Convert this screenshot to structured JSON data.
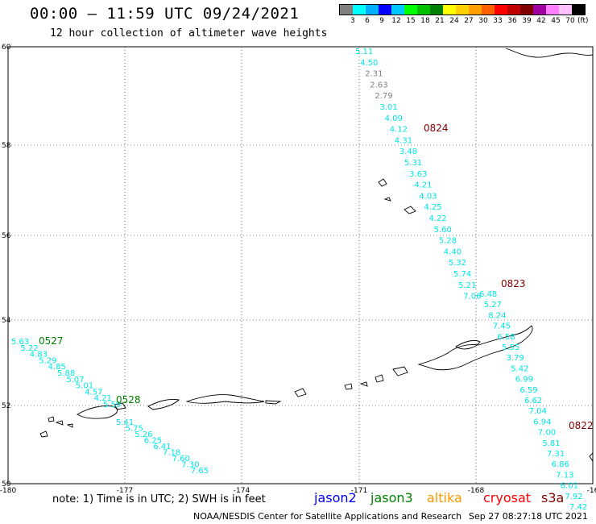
{
  "title": "00:00 – 11:59 UTC 09/24/2021",
  "subtitle": "12 hour collection of altimeter wave heights",
  "colorbar": {
    "unit": "(ft)",
    "colors": [
      "#808080",
      "#00ffff",
      "#00b0ff",
      "#0000ff",
      "#00c8ff",
      "#00ff00",
      "#00c000",
      "#008000",
      "#ffff00",
      "#ffd000",
      "#ffa000",
      "#ff6000",
      "#ff0000",
      "#c00000",
      "#800000",
      "#a000a0",
      "#ff80ff",
      "#ffc0ff",
      "#000000"
    ],
    "ticks": [
      "3",
      "6",
      "9",
      "12",
      "15",
      "18",
      "21",
      "24",
      "27",
      "30",
      "33",
      "36",
      "39",
      "42",
      "45",
      "70"
    ]
  },
  "axes": {
    "lat_labels": [
      "60",
      "58",
      "56",
      "54",
      "52",
      "50"
    ],
    "lon_labels": [
      "-180",
      "-177",
      "-174",
      "-171",
      "-168",
      "-16"
    ]
  },
  "tracks": [
    {
      "name": "track-0824",
      "time": "0824",
      "color": "#800000",
      "values": [
        "5.11",
        "4.50",
        "2.31",
        "2.63",
        "2.79",
        "3.01",
        "4.09",
        "4.12",
        "4.31",
        "3.48",
        "5.31",
        "3.63",
        "4.21",
        "4.03",
        "4.25",
        "4.22",
        "5.60",
        "5.28",
        "4.40",
        "5.32",
        "5.74",
        "5.21",
        "7.06"
      ]
    },
    {
      "name": "track-0823",
      "time": "0823",
      "color": "#800000",
      "values": [
        "6.48",
        "5.27",
        "8.24",
        "7.45",
        "6.58",
        "5.55",
        "3.79",
        "5.42",
        "6.99",
        "6.59",
        "6.62",
        "7.04",
        "6.94",
        "7.00",
        "5.81",
        "7.31",
        "6.86",
        "7.13",
        "6.01",
        "7.92",
        "7.42"
      ]
    },
    {
      "name": "track-0822",
      "time": "0822",
      "color": "#800000",
      "values": []
    },
    {
      "name": "track-0527",
      "time": "0527",
      "color": "#008000",
      "values": [
        "5.63",
        "5.22",
        "4.83",
        "5.29",
        "4.85",
        "5.88",
        "5.07",
        "5.01",
        "4.57",
        "4.21",
        "5.59"
      ]
    },
    {
      "name": "track-0528",
      "time": "0528",
      "color": "#008000",
      "values": [
        "5.41",
        "5.75",
        "5.26",
        "6.25",
        "6.41",
        "7.18",
        "7.60",
        "7.30",
        "7.65"
      ]
    }
  ],
  "note": "note: 1) Time is in UTC; 2) SWH is in feet",
  "satellites": [
    {
      "label": "jason2",
      "color": "#0000ff"
    },
    {
      "label": "jason3",
      "color": "#008000"
    },
    {
      "label": "altika",
      "color": "#ff9900"
    },
    {
      "label": "cryosat",
      "color": "#ff0000"
    },
    {
      "label": "s3a",
      "color": "#800000"
    }
  ],
  "credit": "NOAA/NESDIS Center for Satellite Applications and Research",
  "generated": "Sep 27 08:27:18 UTC 2021"
}
